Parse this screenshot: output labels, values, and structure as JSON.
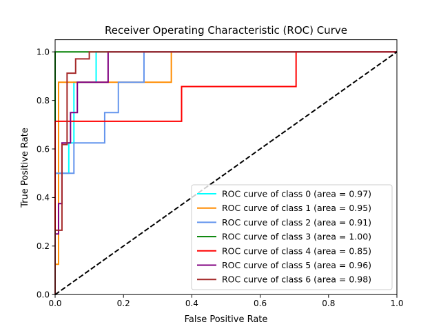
{
  "chart_data": {
    "type": "line",
    "title": "Receiver Operating Characteristic (ROC) Curve",
    "xlabel": "False Positive Rate",
    "ylabel": "True Positive Rate",
    "xlim": [
      0,
      1
    ],
    "ylim": [
      0,
      1.05
    ],
    "xticks": [
      0.0,
      0.2,
      0.4,
      0.6,
      0.8,
      1.0
    ],
    "yticks": [
      0.0,
      0.2,
      0.4,
      0.6,
      0.8,
      1.0
    ],
    "xtick_labels": [
      "0.0",
      "0.2",
      "0.4",
      "0.6",
      "0.8",
      "1.0"
    ],
    "ytick_labels": [
      "0.0",
      "0.2",
      "0.4",
      "0.6",
      "0.8",
      "1.0"
    ],
    "grid": false,
    "legend_position": "lower-right",
    "series": [
      {
        "name": "ROC curve of class 0 (area = 0.97)",
        "color": "#00ffff",
        "x": [
          0.0,
          0.0,
          0.01,
          0.01,
          0.04,
          0.04,
          0.055,
          0.055,
          0.12,
          0.12,
          1.0
        ],
        "y": [
          0.0,
          0.5,
          0.5,
          0.5,
          0.5,
          0.625,
          0.625,
          0.875,
          0.875,
          1.0,
          1.0
        ]
      },
      {
        "name": "ROC curve of class 1 (area = 0.95)",
        "color": "#ff8c00",
        "x": [
          0.0,
          0.0,
          0.01,
          0.01,
          0.26,
          0.26,
          0.34,
          0.34,
          1.0
        ],
        "y": [
          0.0,
          0.125,
          0.125,
          0.875,
          0.875,
          0.875,
          0.875,
          1.0,
          1.0
        ]
      },
      {
        "name": "ROC curve of class 2 (area = 0.91)",
        "color": "#6495ed",
        "x": [
          0.0,
          0.0,
          0.01,
          0.01,
          0.055,
          0.055,
          0.145,
          0.145,
          0.185,
          0.185,
          0.26,
          0.26,
          1.0
        ],
        "y": [
          0.0,
          0.5,
          0.5,
          0.5,
          0.5,
          0.625,
          0.625,
          0.75,
          0.75,
          0.875,
          0.875,
          1.0,
          1.0
        ]
      },
      {
        "name": "ROC curve of class 3 (area = 1.00)",
        "color": "#008000",
        "x": [
          0.0,
          0.0,
          1.0
        ],
        "y": [
          0.0,
          1.0,
          1.0
        ]
      },
      {
        "name": "ROC curve of class 4 (area = 0.85)",
        "color": "#ff0000",
        "x": [
          0.0,
          0.0,
          0.37,
          0.37,
          0.705,
          0.705,
          1.0
        ],
        "y": [
          0.0,
          0.714,
          0.714,
          0.857,
          0.857,
          1.0,
          1.0
        ]
      },
      {
        "name": "ROC curve of class 5 (area = 0.96)",
        "color": "#800080",
        "x": [
          0.0,
          0.0,
          0.01,
          0.01,
          0.02,
          0.02,
          0.03,
          0.03,
          0.045,
          0.045,
          0.065,
          0.065,
          0.155,
          0.155,
          1.0
        ],
        "y": [
          0.0,
          0.25,
          0.25,
          0.375,
          0.375,
          0.625,
          0.625,
          0.625,
          0.625,
          0.75,
          0.75,
          0.875,
          0.875,
          1.0,
          1.0
        ]
      },
      {
        "name": "ROC curve of class 6 (area = 0.98)",
        "color": "#a52a2a",
        "x": [
          0.0,
          0.0,
          0.02,
          0.02,
          0.035,
          0.035,
          0.06,
          0.06,
          0.1,
          0.1,
          1.0
        ],
        "y": [
          0.0,
          0.265,
          0.265,
          0.618,
          0.618,
          0.912,
          0.912,
          0.971,
          0.971,
          1.0,
          1.0
        ]
      }
    ],
    "reference_line": {
      "color": "#000000",
      "style": "dashed",
      "x": [
        0,
        1
      ],
      "y": [
        0,
        1
      ]
    }
  }
}
